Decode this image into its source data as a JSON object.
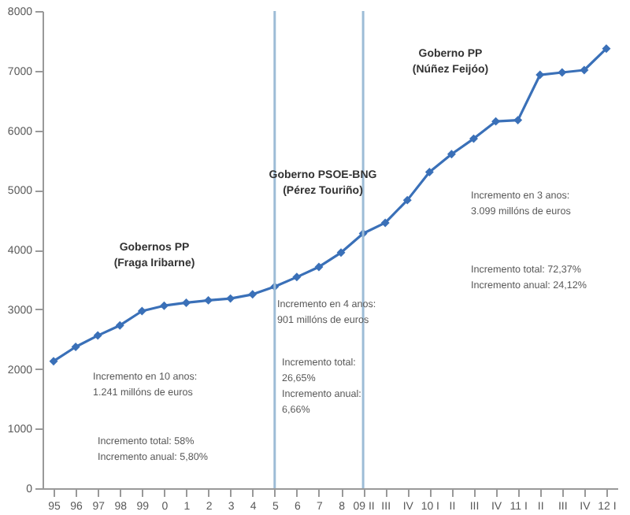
{
  "chart_data": {
    "type": "line",
    "categories": [
      "95",
      "96",
      "97",
      "98",
      "99",
      "0",
      "1",
      "2",
      "3",
      "4",
      "5",
      "6",
      "7",
      "8",
      "09 II",
      "III",
      "IV",
      "10 I",
      "II",
      "III",
      "IV",
      "11 I",
      "II",
      "III",
      "IV",
      "12 I"
    ],
    "series": [
      {
        "color": "#3a70b8",
        "values": [
          2130,
          2370,
          2560,
          2730,
          2970,
          3060,
          3110,
          3150,
          3180,
          3250,
          3380,
          3540,
          3710,
          3950,
          4270,
          4450,
          4830,
          5300,
          5600,
          5860,
          6150,
          6170,
          6930,
          6970,
          7010,
          7370
        ]
      }
    ],
    "ylim": [
      0,
      8000
    ],
    "yticks": [
      0,
      1000,
      2000,
      3000,
      4000,
      5000,
      6000,
      7000,
      8000
    ],
    "marker": "diamond",
    "line_style": "solid",
    "grid": false,
    "ref_lines": [
      {
        "axis": "x",
        "value": "5",
        "color": "#9dbcd6"
      },
      {
        "axis": "x",
        "value": "09 II",
        "color": "#9dbcd6"
      }
    ],
    "annotations": [
      "Gobernos PP\n(Fraga Iribarne)",
      "Incremento en 10 anos:\n1.241 millóns de euros",
      "Incremento total: 58%\nIncremento anual: 5,80%",
      "Goberno PSOE-BNG\n(Pérez Touriño)",
      "Incremento en 4 anos:\n901 millóns de euros",
      "Incremento total:\n26,65%\nIncremento anual:\n6,66%",
      "Goberno PP\n(Núñez Feijóo)",
      "Incremento en 3 anos:\n3.099 millóns de euros",
      "Incremento total: 72,37%\nIncremento anual: 24,12%"
    ]
  }
}
